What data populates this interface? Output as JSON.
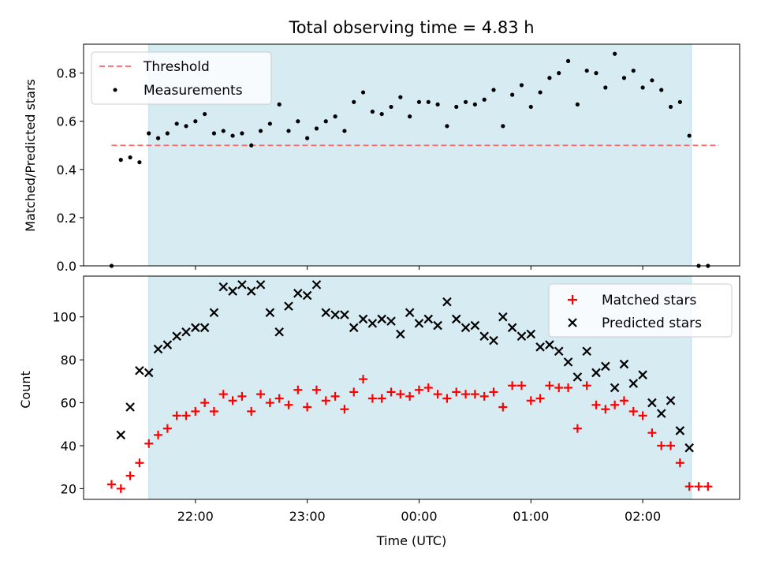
{
  "chart_data": [
    {
      "type": "scatter",
      "title": "Total observing time = 4.83 h",
      "ylabel": "Matched/Predicted stars",
      "xlabel": "",
      "ylim": [
        0,
        0.92
      ],
      "yticks": [
        "0.0",
        "0.2",
        "0.4",
        "0.6",
        "0.8"
      ],
      "shaded_interval": [
        "21:35",
        "02:26"
      ],
      "shade_color": "#add8e6",
      "legend_position": "upper left",
      "threshold": {
        "name": "Threshold",
        "value": 0.5,
        "x_range": [
          "21:15",
          "02:41"
        ],
        "color": "#ff6666",
        "style": "dashed"
      },
      "series": [
        {
          "name": "Measurements",
          "color": "#000000",
          "marker": "dot",
          "x": [
            "21:15",
            "21:20",
            "21:25",
            "21:30",
            "21:35",
            "21:40",
            "21:45",
            "21:50",
            "21:55",
            "22:00",
            "22:05",
            "22:10",
            "22:15",
            "22:20",
            "22:25",
            "22:30",
            "22:35",
            "22:40",
            "22:45",
            "22:50",
            "22:55",
            "23:00",
            "23:05",
            "23:10",
            "23:15",
            "23:20",
            "23:25",
            "23:30",
            "23:35",
            "23:40",
            "23:45",
            "23:50",
            "23:55",
            "00:00",
            "00:05",
            "00:10",
            "00:15",
            "00:20",
            "00:25",
            "00:30",
            "00:35",
            "00:40",
            "00:45",
            "00:50",
            "00:55",
            "01:00",
            "01:05",
            "01:10",
            "01:15",
            "01:20",
            "01:25",
            "01:30",
            "01:35",
            "01:40",
            "01:45",
            "01:50",
            "01:55",
            "02:00",
            "02:05",
            "02:10",
            "02:15",
            "02:20",
            "02:25",
            "02:30",
            "02:35"
          ],
          "y": [
            0.0,
            0.44,
            0.45,
            0.43,
            0.55,
            0.53,
            0.55,
            0.59,
            0.58,
            0.6,
            0.63,
            0.55,
            0.56,
            0.54,
            0.55,
            0.5,
            0.56,
            0.59,
            0.67,
            0.56,
            0.6,
            0.53,
            0.57,
            0.6,
            0.62,
            0.56,
            0.68,
            0.72,
            0.64,
            0.63,
            0.66,
            0.7,
            0.62,
            0.68,
            0.68,
            0.67,
            0.58,
            0.66,
            0.68,
            0.67,
            0.69,
            0.73,
            0.58,
            0.71,
            0.75,
            0.66,
            0.72,
            0.78,
            0.8,
            0.85,
            0.67,
            0.81,
            0.8,
            0.74,
            0.88,
            0.78,
            0.81,
            0.74,
            0.77,
            0.73,
            0.66,
            0.68,
            0.54,
            0.0,
            0.0
          ]
        }
      ]
    },
    {
      "type": "scatter",
      "ylabel": "Count",
      "xlabel": "Time (UTC)",
      "ylim": [
        15,
        119
      ],
      "yticks": [
        "20",
        "40",
        "60",
        "80",
        "100"
      ],
      "xticks": [
        "22:00",
        "23:00",
        "00:00",
        "01:00",
        "02:00"
      ],
      "xlim": [
        "21:00",
        "02:52"
      ],
      "shaded_interval": [
        "21:35",
        "02:26"
      ],
      "shade_color": "#add8e6",
      "legend_position": "upper right",
      "x": [
        "21:15",
        "21:20",
        "21:25",
        "21:30",
        "21:35",
        "21:40",
        "21:45",
        "21:50",
        "21:55",
        "22:00",
        "22:05",
        "22:10",
        "22:15",
        "22:20",
        "22:25",
        "22:30",
        "22:35",
        "22:40",
        "22:45",
        "22:50",
        "22:55",
        "23:00",
        "23:05",
        "23:10",
        "23:15",
        "23:20",
        "23:25",
        "23:30",
        "23:35",
        "23:40",
        "23:45",
        "23:50",
        "23:55",
        "00:00",
        "00:05",
        "00:10",
        "00:15",
        "00:20",
        "00:25",
        "00:30",
        "00:35",
        "00:40",
        "00:45",
        "00:50",
        "00:55",
        "01:00",
        "01:05",
        "01:10",
        "01:15",
        "01:20",
        "01:25",
        "01:30",
        "01:35",
        "01:40",
        "01:45",
        "01:50",
        "01:55",
        "02:00",
        "02:05",
        "02:10",
        "02:15",
        "02:20",
        "02:25",
        "02:30",
        "02:35"
      ],
      "series": [
        {
          "name": "Matched stars",
          "color": "#ff0000",
          "marker": "plus",
          "values": [
            22,
            20,
            26,
            32,
            41,
            45,
            48,
            54,
            54,
            56,
            60,
            56,
            64,
            61,
            63,
            56,
            64,
            60,
            62,
            59,
            66,
            58,
            66,
            61,
            63,
            57,
            65,
            71,
            62,
            62,
            65,
            64,
            63,
            66,
            67,
            64,
            62,
            65,
            64,
            64,
            63,
            65,
            58,
            68,
            68,
            61,
            62,
            68,
            67,
            67,
            48,
            68,
            59,
            57,
            59,
            61,
            56,
            54,
            46,
            40,
            40,
            32,
            21,
            21,
            21
          ]
        },
        {
          "name": "Predicted stars",
          "color": "#000000",
          "marker": "x",
          "values": [
            null,
            45,
            58,
            75,
            74,
            85,
            87,
            91,
            93,
            95,
            95,
            102,
            114,
            112,
            115,
            112,
            115,
            102,
            93,
            105,
            111,
            110,
            115,
            102,
            101,
            101,
            95,
            99,
            97,
            99,
            98,
            92,
            102,
            97,
            99,
            96,
            107,
            99,
            95,
            96,
            91,
            89,
            100,
            95,
            91,
            92,
            86,
            87,
            84,
            79,
            72,
            84,
            74,
            77,
            67,
            78,
            69,
            73,
            60,
            55,
            61,
            47,
            39,
            null,
            null
          ]
        }
      ]
    }
  ]
}
